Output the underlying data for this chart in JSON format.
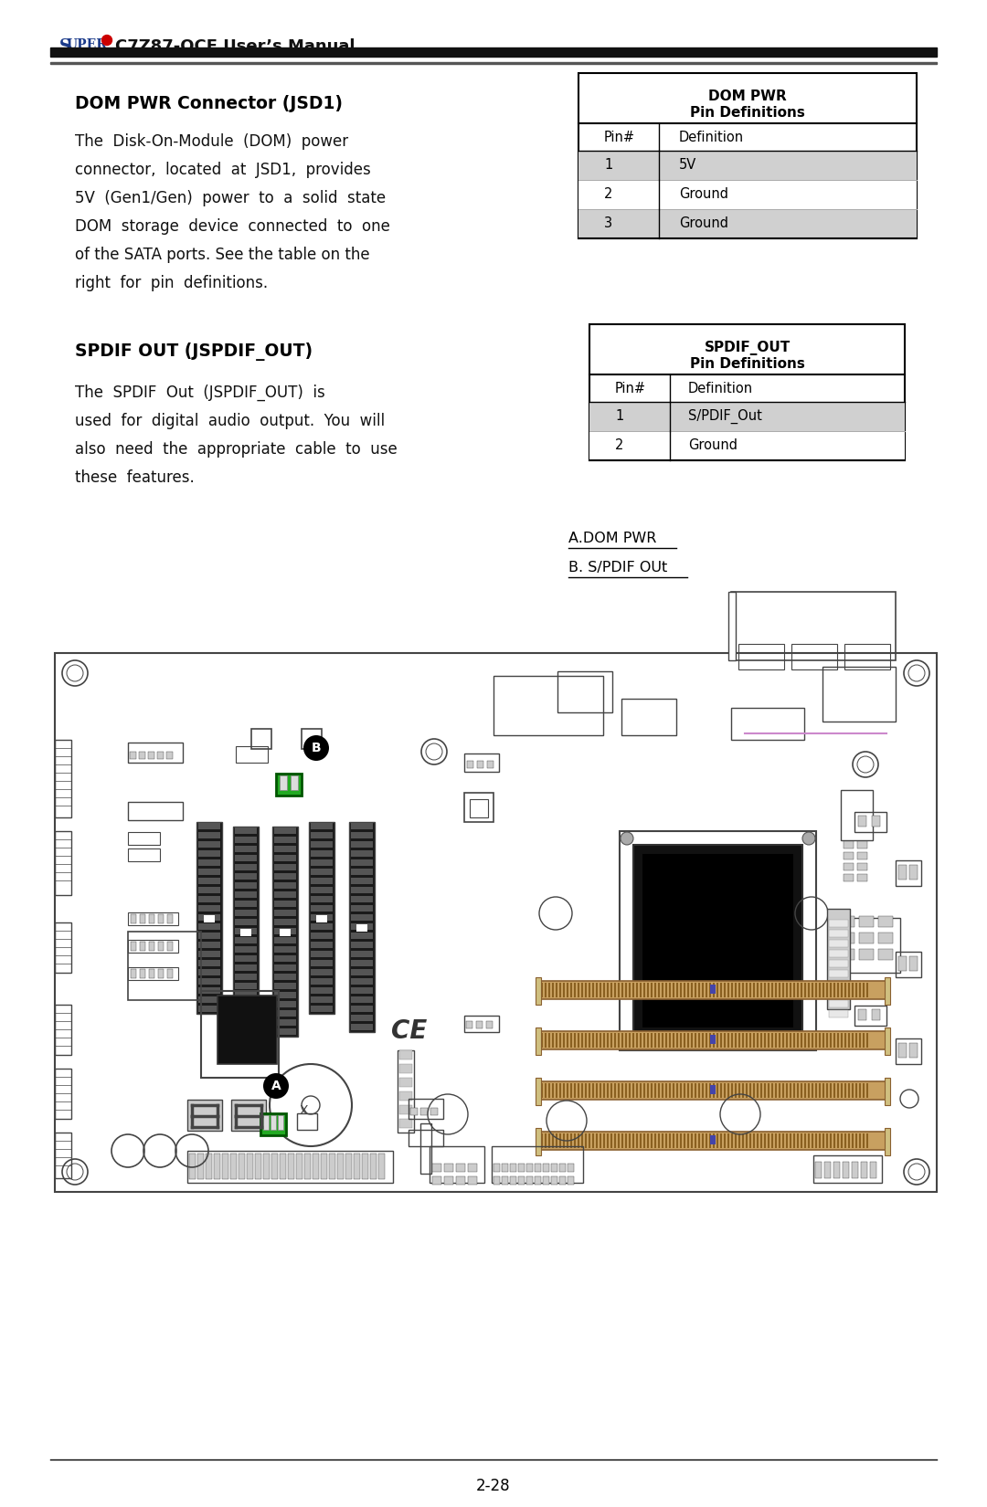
{
  "page_title": "SUPER® C7Z87-OCE User’s Manual",
  "section1_title": "DOM PWR Connector (JSD1)",
  "section1_body": [
    "The  Disk-On-Module  (DOM)  power",
    "connector,  located  at  JSD1,  provides",
    "5V  (Gen1/Gen)  power  to  a  solid  state",
    "DOM  storage  device  connected  to  one",
    "of the SATA ports. See the table on the",
    "right  for  pin  definitions."
  ],
  "table1_title1": "DOM PWR",
  "table1_title2": "Pin Definitions",
  "table1_rows": [
    [
      "1",
      "5V"
    ],
    [
      "2",
      "Ground"
    ],
    [
      "3",
      "Ground"
    ]
  ],
  "table1_shaded": [
    true,
    false,
    true
  ],
  "section2_title": "SPDIF OUT (JSPDIF_OUT)",
  "section2_body": [
    "The  SPDIF  Out  (JSPDIF_OUT)  is",
    "used  for  digital  audio  output.  You  will",
    "also  need  the  appropriate  cable  to  use",
    "these  features."
  ],
  "table2_title1": "SPDIF_OUT",
  "table2_title2": "Pin Definitions",
  "table2_rows": [
    [
      "1",
      "S/PDIF_Out"
    ],
    [
      "2",
      "Ground"
    ]
  ],
  "table2_shaded": [
    true,
    false
  ],
  "label_a": "A.DOM PWR",
  "label_b": "B. S/PDIF OUt",
  "footer_text": "2-28",
  "super_color": "#1a3a8a",
  "red_color": "#cc0000",
  "shaded_color": "#d0d0d0",
  "table_border": "#000000",
  "text_color": "#111111",
  "pcb_line": "#444444",
  "pcb_bg": "#ffffff",
  "green_conn": "#22aa22",
  "gold_color": "#c8a060",
  "gold_dark": "#8a6030"
}
